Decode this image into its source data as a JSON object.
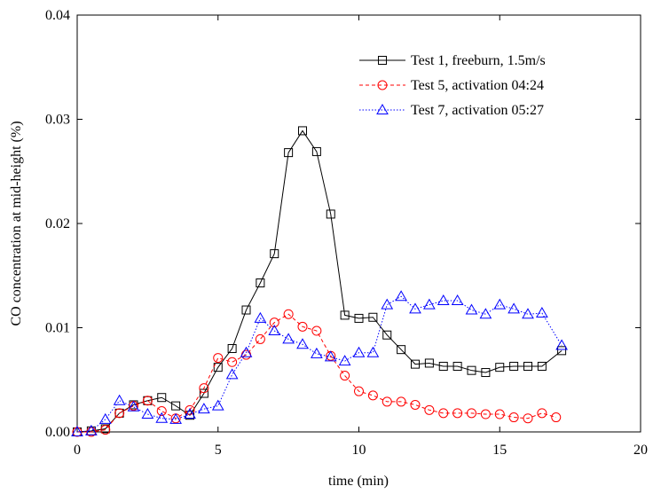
{
  "chart_data": {
    "type": "line",
    "xlabel": "time (min)",
    "ylabel": "CO concentration at mid-height (%)",
    "xlim": [
      0,
      20
    ],
    "xticks": [
      0,
      5,
      10,
      15,
      20
    ],
    "ylim": [
      0,
      0.04
    ],
    "yticks": [
      {
        "value": 0,
        "label": "0.00"
      },
      {
        "value": 0.01,
        "label": "0.01"
      },
      {
        "value": 0.02,
        "label": "0.02"
      },
      {
        "value": 0.03,
        "label": "0.03"
      },
      {
        "value": 0.04,
        "label": "0.04"
      }
    ],
    "legend": "upper right",
    "series": [
      {
        "name": "Test 1, freeburn, 1.5m/s",
        "color": "#000000",
        "marker": "square",
        "dash": "solid",
        "x": [
          0,
          0.5,
          1,
          1.5,
          2,
          2.5,
          3,
          3.5,
          4,
          4.5,
          5,
          5.5,
          6,
          6.5,
          7,
          7.5,
          8,
          8.5,
          9,
          9.5,
          10,
          10.5,
          11,
          11.5,
          12,
          12.5,
          13,
          13.5,
          14,
          14.5,
          15,
          15.5,
          16,
          16.5,
          17.2
        ],
        "values": [
          0,
          0.0001,
          0.0003,
          0.0018,
          0.0026,
          0.003,
          0.0033,
          0.0025,
          0.0016,
          0.0037,
          0.0062,
          0.008,
          0.0117,
          0.0143,
          0.0171,
          0.0268,
          0.0289,
          0.0269,
          0.0209,
          0.0112,
          0.0109,
          0.011,
          0.0093,
          0.0079,
          0.0065,
          0.0066,
          0.0063,
          0.0063,
          0.0059,
          0.0057,
          0.0062,
          0.0063,
          0.0063,
          0.0063,
          0.0078
        ]
      },
      {
        "name": "Test 5, activation 04:24",
        "color": "#ff0000",
        "marker": "circle",
        "dash": "dashed",
        "x": [
          0,
          0.5,
          1,
          1.5,
          2,
          2.5,
          3,
          3.5,
          4,
          4.5,
          5,
          5.5,
          6,
          6.5,
          7,
          7.5,
          8,
          8.5,
          9,
          9.5,
          10,
          10.5,
          11,
          11.5,
          12,
          12.5,
          13,
          13.5,
          14,
          14.5,
          15,
          15.5,
          16,
          16.5,
          17
        ],
        "values": [
          0,
          0,
          0.0002,
          0.0018,
          0.0025,
          0.003,
          0.002,
          0.0013,
          0.0021,
          0.0042,
          0.0071,
          0.0067,
          0.0074,
          0.0089,
          0.0105,
          0.0113,
          0.0101,
          0.0097,
          0.0073,
          0.0054,
          0.0039,
          0.0035,
          0.0029,
          0.0029,
          0.0026,
          0.0021,
          0.0018,
          0.0018,
          0.0018,
          0.0017,
          0.0017,
          0.0014,
          0.0013,
          0.0018,
          0.0014
        ]
      },
      {
        "name": "Test 7, activation 05:27",
        "color": "#0000ff",
        "marker": "triangle",
        "dash": "dotted",
        "x": [
          0,
          0.5,
          1,
          1.5,
          2,
          2.5,
          3,
          3.5,
          4,
          4.5,
          5,
          5.5,
          6,
          6.5,
          7,
          7.5,
          8,
          8.5,
          9,
          9.5,
          10,
          10.5,
          11,
          11.5,
          12,
          12.5,
          13,
          13.5,
          14,
          14.5,
          15,
          15.5,
          16,
          16.5,
          17.2
        ],
        "values": [
          0,
          0.0001,
          0.0012,
          0.003,
          0.0024,
          0.0017,
          0.0013,
          0.0012,
          0.0017,
          0.0022,
          0.0025,
          0.0055,
          0.0076,
          0.0109,
          0.0097,
          0.0089,
          0.0084,
          0.0075,
          0.0072,
          0.0068,
          0.0076,
          0.0076,
          0.0122,
          0.013,
          0.0118,
          0.0122,
          0.0126,
          0.0126,
          0.0117,
          0.0113,
          0.0122,
          0.0118,
          0.0113,
          0.0114,
          0.0083
        ]
      }
    ]
  }
}
